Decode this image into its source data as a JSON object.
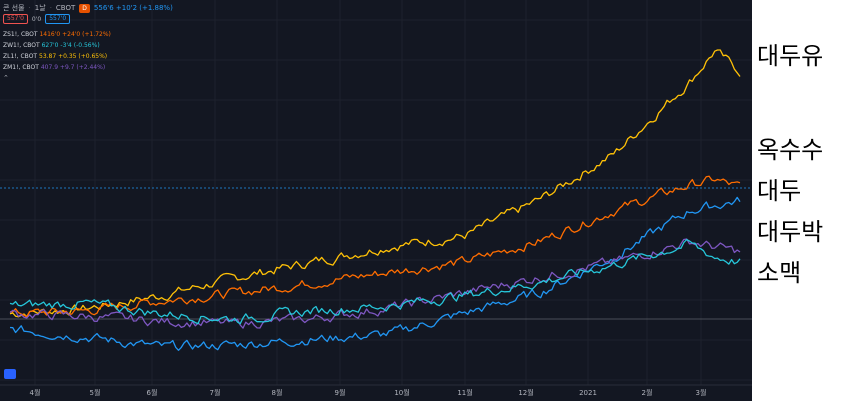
{
  "header": {
    "title": "콘 선물",
    "interval": "1날",
    "exchange": "CBOT",
    "badge": "D",
    "price_change": "556'6 +10'2 (+1.88%)",
    "box_left": "557'0",
    "box_mid": "0'0",
    "box_right": "557'0"
  },
  "legend": [
    {
      "symbol": "ZS1!, CBOT",
      "values": "1416'0 +24'0 (+1.72%)",
      "color": "#ff6d00"
    },
    {
      "symbol": "ZW1!, CBOT",
      "values": "627'0 -3'4 (-0.56%)",
      "color": "#26c6da"
    },
    {
      "symbol": "ZL1!, CBOT",
      "values": "53.87 +0.35 (+0.65%)",
      "color": "#ffc107"
    },
    {
      "symbol": "ZM1!, CBOT",
      "values": "407.9 +9.7 (+2.44%)",
      "color": "#7e57c2"
    }
  ],
  "collapse_icon": "chevron-up-icon",
  "colors": {
    "background": "#131722",
    "grid": "#1e222d",
    "corn": "#2196f3",
    "soybean": "#ff6d00",
    "wheat": "#26c6da",
    "soyoil": "#ffc107",
    "soymeal": "#7e57c2"
  },
  "chart_data": {
    "type": "line",
    "x": [
      "4월",
      "5월",
      "6월",
      "7월",
      "8월",
      "9월",
      "10월",
      "11월",
      "12월",
      "2021",
      "2월",
      "3월"
    ],
    "grid": true,
    "series": [
      {
        "name": "대두유",
        "color": "#ffc107",
        "points": [
          [
            0,
            -2
          ],
          [
            3,
            0
          ],
          [
            6,
            5
          ],
          [
            9,
            12
          ],
          [
            12,
            18
          ],
          [
            15,
            24
          ],
          [
            18,
            28
          ],
          [
            21,
            42
          ],
          [
            24,
            60
          ],
          [
            27,
            88
          ],
          [
            28,
            100
          ],
          [
            29,
            92
          ]
        ]
      },
      {
        "name": "옥수수",
        "color": "#ff6d00",
        "points": [
          [
            0,
            -2
          ],
          [
            3,
            -1
          ],
          [
            6,
            3
          ],
          [
            9,
            6
          ],
          [
            12,
            10
          ],
          [
            15,
            14
          ],
          [
            18,
            18
          ],
          [
            21,
            26
          ],
          [
            24,
            38
          ],
          [
            27,
            48
          ],
          [
            28,
            50
          ],
          [
            29,
            47
          ]
        ]
      },
      {
        "name": "대두",
        "color": "#2196f3",
        "points": [
          [
            0,
            -8
          ],
          [
            3,
            -11
          ],
          [
            6,
            -15
          ],
          [
            9,
            -14
          ],
          [
            12,
            -12
          ],
          [
            15,
            -10
          ],
          [
            18,
            -2
          ],
          [
            21,
            6
          ],
          [
            24,
            20
          ],
          [
            27,
            38
          ],
          [
            28,
            40
          ],
          [
            29,
            42
          ]
        ]
      },
      {
        "name": "대두박",
        "color": "#7e57c2",
        "points": [
          [
            0,
            -2
          ],
          [
            3,
            -3
          ],
          [
            6,
            -5
          ],
          [
            9,
            -6
          ],
          [
            12,
            -4
          ],
          [
            15,
            0
          ],
          [
            18,
            6
          ],
          [
            21,
            12
          ],
          [
            24,
            18
          ],
          [
            27,
            26
          ],
          [
            28,
            24
          ],
          [
            29,
            22
          ]
        ]
      },
      {
        "name": "소맥",
        "color": "#26c6da",
        "points": [
          [
            0,
            1
          ],
          [
            3,
            2
          ],
          [
            6,
            -2
          ],
          [
            9,
            -4
          ],
          [
            12,
            -1
          ],
          [
            15,
            1
          ],
          [
            18,
            5
          ],
          [
            21,
            10
          ],
          [
            24,
            17
          ],
          [
            27,
            25
          ],
          [
            28,
            20
          ],
          [
            29,
            18
          ]
        ]
      }
    ]
  }
}
